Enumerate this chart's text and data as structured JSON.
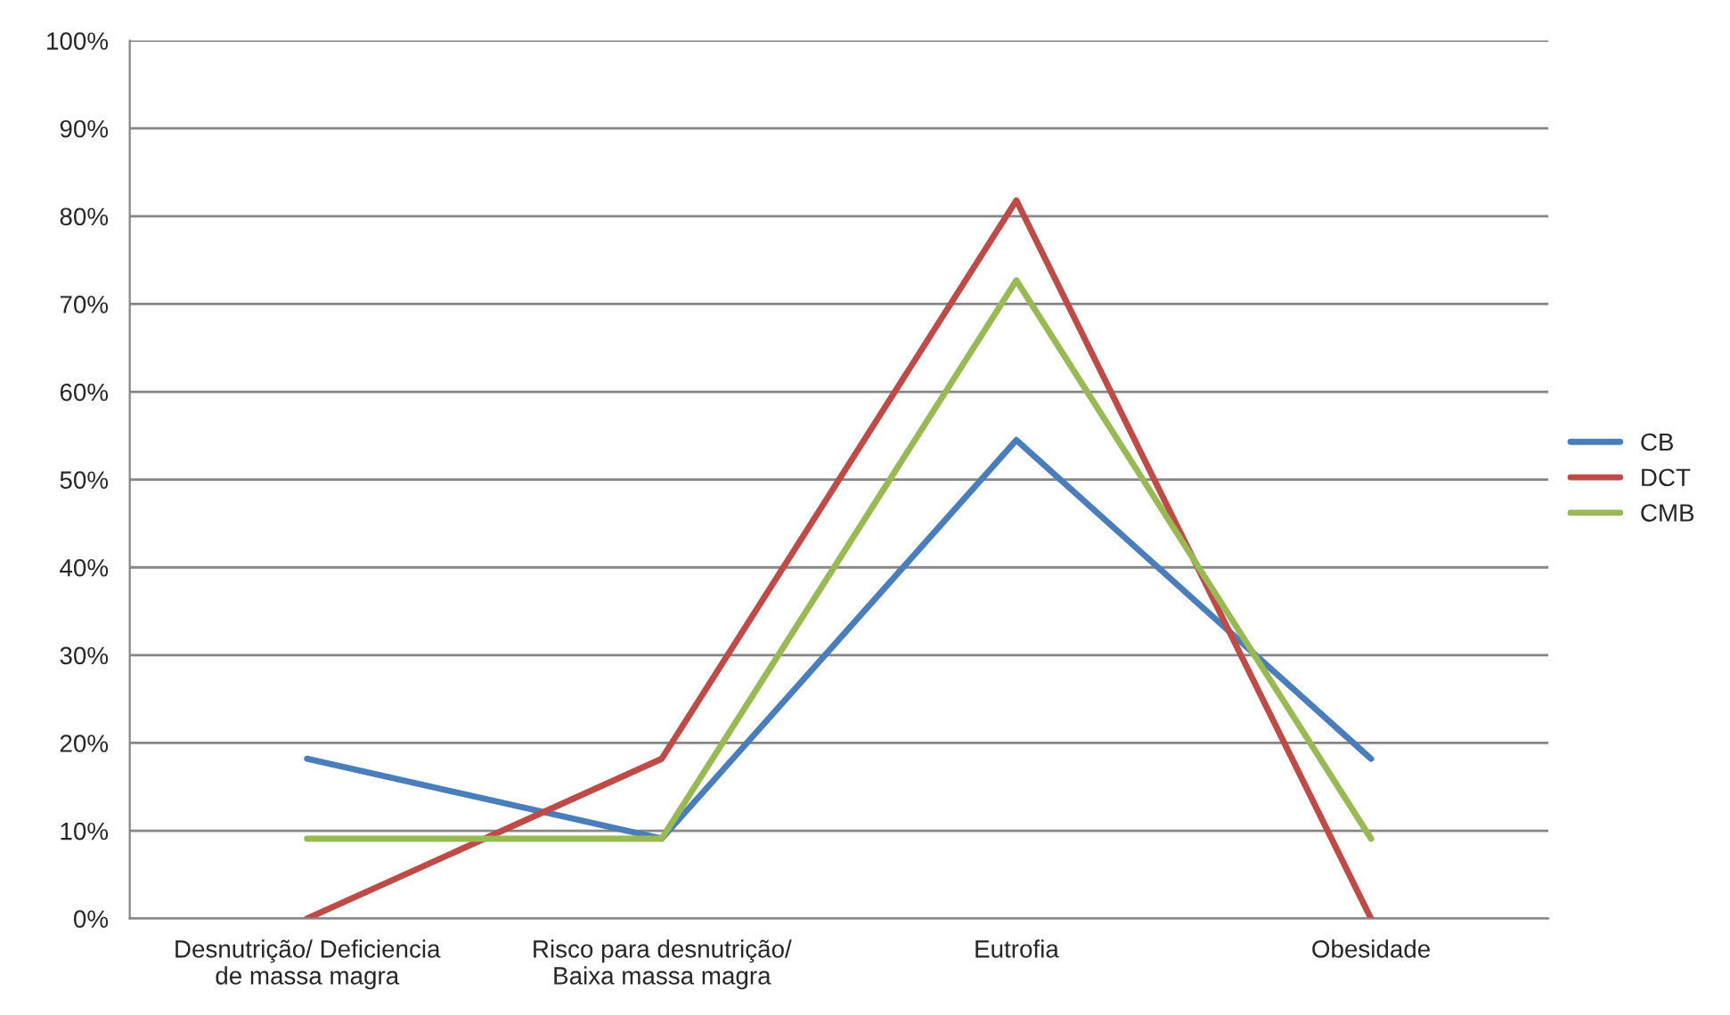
{
  "chart_data": {
    "type": "line",
    "categories": [
      "Desnutrição/ Deficiencia\nde massa magra",
      "Risco para desnutrição/\nBaixa massa magra",
      "Eutrofia",
      "Obesidade"
    ],
    "series": [
      {
        "name": "CB",
        "color": "#4a7ebb",
        "values": [
          18.2,
          9.1,
          54.5,
          18.2
        ]
      },
      {
        "name": "DCT",
        "color": "#be4b48",
        "values": [
          0,
          18.2,
          81.8,
          0
        ]
      },
      {
        "name": "CMB",
        "color": "#98b954",
        "values": [
          9.1,
          9.1,
          72.7,
          9.1
        ]
      }
    ],
    "ylim": [
      0,
      100
    ],
    "yticks": [
      {
        "value": 0,
        "label": "0%"
      },
      {
        "value": 10,
        "label": "10%"
      },
      {
        "value": 20,
        "label": "20%"
      },
      {
        "value": 30,
        "label": "30%"
      },
      {
        "value": 40,
        "label": "40%"
      },
      {
        "value": 50,
        "label": "50%"
      },
      {
        "value": 60,
        "label": "60%"
      },
      {
        "value": 70,
        "label": "70%"
      },
      {
        "value": 80,
        "label": "80%"
      },
      {
        "value": 90,
        "label": "90%"
      },
      {
        "value": 100,
        "label": "100%"
      }
    ],
    "grid": "y",
    "legend": "right",
    "marker": "none",
    "line_style": "solid"
  }
}
